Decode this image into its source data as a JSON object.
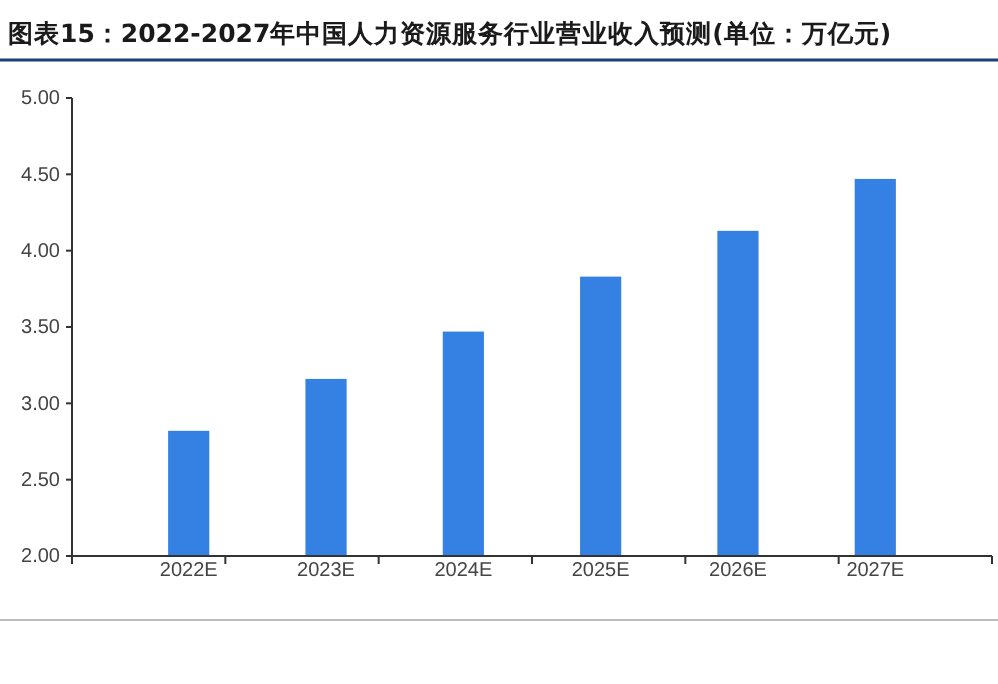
{
  "chart_data": {
    "type": "bar",
    "title": "图表15：2022-2027年中国人力资源服务行业营业收入预测(单位：万亿元)",
    "categories": [
      "2022E",
      "2023E",
      "2024E",
      "2025E",
      "2026E",
      "2027E"
    ],
    "values": [
      2.82,
      3.16,
      3.47,
      3.83,
      4.13,
      4.47
    ],
    "color": "#3580e3",
    "ylim": [
      2,
      5
    ],
    "yticks": [
      {
        "value": 2,
        "label": "2.00"
      },
      {
        "value": 2.5,
        "label": "2.50"
      },
      {
        "value": 3,
        "label": "3.00"
      },
      {
        "value": 3.5,
        "label": "3.50"
      },
      {
        "value": 4,
        "label": "4.00"
      },
      {
        "value": 4.5,
        "label": "4.50"
      },
      {
        "value": 5,
        "label": "5.00"
      }
    ],
    "grid": false
  }
}
